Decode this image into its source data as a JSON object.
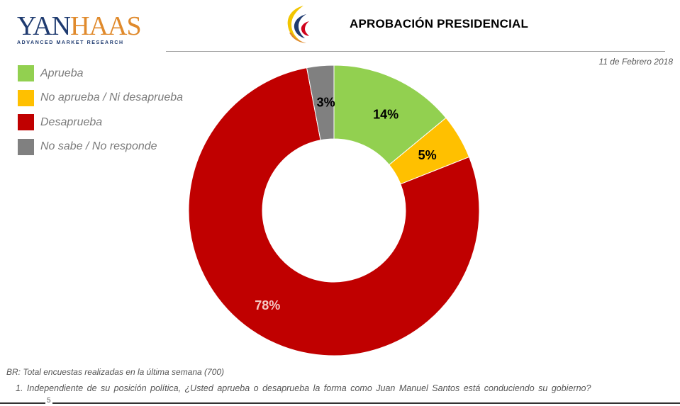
{
  "brand": {
    "logo_text_part1": "YAN",
    "logo_text_part2": "HAAS",
    "logo_subtitle": "ADVANCED MARKET RESEARCH"
  },
  "header": {
    "title": "APROBACIÓN PRESIDENCIAL",
    "date": "11 de Febrero 2018"
  },
  "legend": [
    {
      "label": "Aprueba",
      "color": "#92d050"
    },
    {
      "label": "No aprueba / Ni desaprueba",
      "color": "#ffc000"
    },
    {
      "label": "Desaprueba",
      "color": "#c00000"
    },
    {
      "label": "No sabe  /  No responde",
      "color": "#808080"
    }
  ],
  "chart_data": {
    "type": "pie",
    "subtype": "donut",
    "categories": [
      "Aprueba",
      "No aprueba / Ni desaprueba",
      "Desaprueba",
      "No sabe / No responde"
    ],
    "values": [
      14,
      5,
      78,
      3
    ],
    "labels": [
      "14%",
      "5%",
      "78%",
      "3%"
    ],
    "colors": [
      "#92d050",
      "#ffc000",
      "#c00000",
      "#808080"
    ],
    "label_colors": [
      "#000000",
      "#000000",
      "#f4c7c3",
      "#000000"
    ],
    "title": "APROBACIÓN PRESIDENCIAL",
    "start_angle_deg": 0,
    "direction": "clockwise"
  },
  "footer": {
    "base_note": "BR: Total encuestas realizadas en la última semana (700)",
    "question": "1. Independiente de su posición política, ¿Usted aprueba o desaprueba la forma como Juan Manuel Santos está conduciendo su gobierno?",
    "page_number": "5"
  }
}
